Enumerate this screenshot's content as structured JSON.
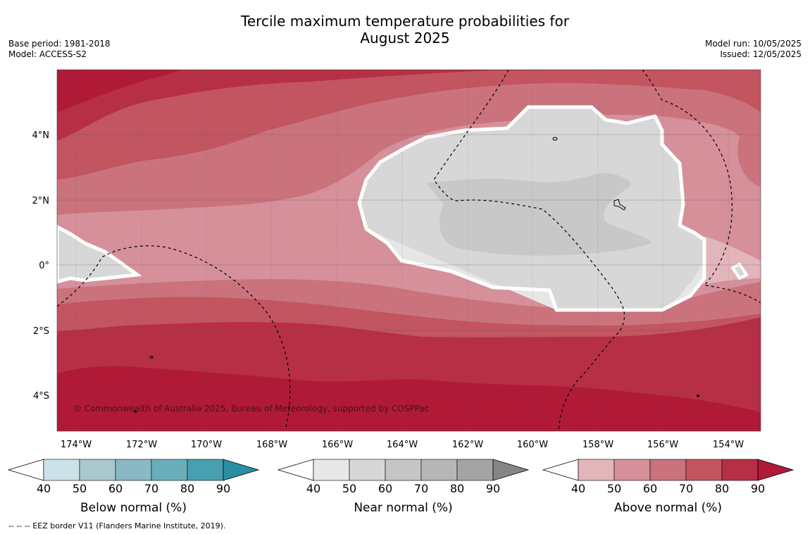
{
  "title_line1": "Tercile maximum temperature probabilities for",
  "title_line2": "August 2025",
  "meta_left": {
    "base_period": "Base period: 1981-2018",
    "model": "Model: ACCESS-S2"
  },
  "meta_right": {
    "model_run": "Model run: 10/05/2025",
    "issued": "Issued: 12/05/2025"
  },
  "copyright": "© Commonwealth of Australia 2025, Bureau of Meteorology, supported by COSPPac",
  "lat_labels": [
    "4°N",
    "2°N",
    "0°",
    "2°S",
    "4°S"
  ],
  "lon_labels": [
    "174°W",
    "172°W",
    "170°W",
    "168°W",
    "166°W",
    "164°W",
    "162°W",
    "160°W",
    "158°W",
    "156°W",
    "154°W"
  ],
  "colorbars": [
    {
      "label": "Below normal (%)",
      "colors": [
        "#cbe3e8",
        "#a9c8cd",
        "#8ab8c3",
        "#6aaebb",
        "#479fb0",
        "#2b8ea2"
      ]
    },
    {
      "label": "Near normal (%)",
      "colors": [
        "#e8e8e8",
        "#d7d7d7",
        "#c5c5c5",
        "#b6b6b6",
        "#a4a4a4",
        "#858585"
      ]
    },
    {
      "label": "Above normal (%)",
      "colors": [
        "#e2b5bb",
        "#d5909a",
        "#ca737d",
        "#c25560",
        "#b72f45",
        "#b01a37"
      ]
    }
  ],
  "colorbar_ticks": [
    "40",
    "50",
    "60",
    "70",
    "80",
    "90"
  ],
  "footnote": "--  --  -- EEZ border V11 (Flanders Marine Institute, 2019).",
  "colors": {
    "above_90": "#b01a37",
    "above_80": "#b72f45",
    "above_70": "#c25560",
    "above_60": "#ca737d",
    "above_50": "#d5909a",
    "near_50": "#d7d7d7",
    "near_60": "#c5c5c5"
  }
}
